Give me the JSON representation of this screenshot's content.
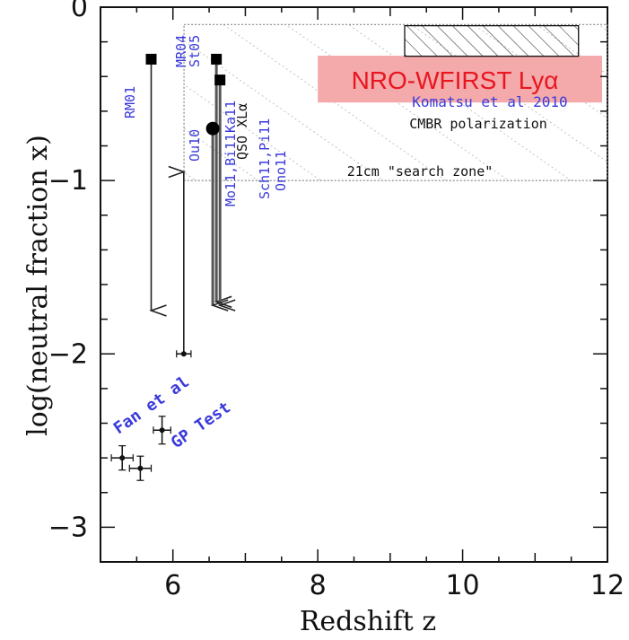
{
  "chart_data": {
    "type": "scatter",
    "xlabel": "Redshift z",
    "ylabel": "log(neutral fraction x)",
    "xlim": [
      5,
      12
    ],
    "ylim": [
      -3.2,
      0
    ],
    "x_ticks": [
      6,
      8,
      10,
      12
    ],
    "x_tick_labels": [
      "6",
      "8",
      "10",
      "12"
    ],
    "y_ticks": [
      0,
      -1,
      -2,
      -3
    ],
    "y_tick_labels": [
      "0",
      "−1",
      "−2",
      "−3"
    ],
    "search_zone": {
      "x": [
        6.5,
        12
      ],
      "y": [
        -1,
        -0.1
      ],
      "label": "21cm \"search zone\""
    },
    "cmbr_box": {
      "x": [
        9.2,
        11.6
      ],
      "y": [
        -0.35,
        -0.2
      ],
      "label": "CMBR polarization",
      "sublabel": "Komatsu et al 2010"
    },
    "banner": {
      "label": "NRO-WFIRST Lyα",
      "x": [
        8.0,
        12.0
      ],
      "y": [
        -0.55,
        -0.28
      ],
      "color": "#f4a9ab"
    },
    "gp_points": [
      {
        "z": 5.3,
        "y": -2.6,
        "xerr": 0.15,
        "yerr": 0.07
      },
      {
        "z": 5.55,
        "y": -2.66,
        "xerr": 0.15,
        "yerr": 0.07
      },
      {
        "z": 5.85,
        "y": -2.44,
        "xerr": 0.12,
        "yerr": 0.08
      },
      {
        "z": 6.15,
        "y": -2.0,
        "xerr": 0.1,
        "yerr": 0.0
      }
    ],
    "gp_label_1": "Fan et al",
    "gp_label_2": "GP Test",
    "limits": [
      {
        "label": "RM01",
        "z": 5.7,
        "y_from": -0.3,
        "y_to": -1.75,
        "direction": "down",
        "marker": "square"
      },
      {
        "label": "",
        "z": 6.15,
        "y_from": -2.0,
        "y_to": -0.95,
        "direction": "up",
        "marker": "none"
      },
      {
        "label": "MR04 St05",
        "z": 6.6,
        "y_from": -0.3,
        "y_to": -1.7,
        "direction": "down",
        "marker": "square"
      },
      {
        "label": "Ka11",
        "z": 6.65,
        "y_from": -0.42,
        "y_to": -1.72,
        "direction": "down",
        "marker": "square"
      },
      {
        "label": "QSO XLα",
        "z": 6.55,
        "y_from": -0.7,
        "y_to": -1.72,
        "direction": "down",
        "marker": "circle"
      }
    ],
    "rotated_labels": [
      {
        "text": "RM01",
        "color": "blue"
      },
      {
        "text": "MR04",
        "color": "blue"
      },
      {
        "text": "St05",
        "color": "blue"
      },
      {
        "text": "Ou10",
        "color": "blue"
      },
      {
        "text": "Ka11",
        "color": "blue"
      },
      {
        "text": "Mo11,Bi11",
        "color": "blue"
      },
      {
        "text": "QSO XLα",
        "color": "black"
      },
      {
        "text": "Sch11,Pi11",
        "color": "blue"
      },
      {
        "text": "Ono11",
        "color": "blue"
      }
    ],
    "grid": false
  }
}
